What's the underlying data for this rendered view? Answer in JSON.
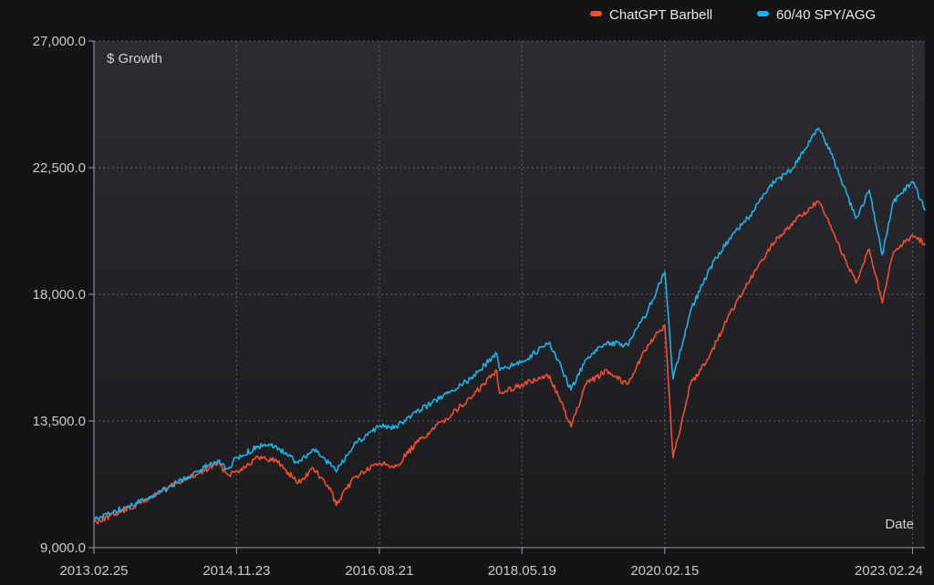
{
  "chart_data": {
    "type": "line",
    "ylabel": "$ Growth",
    "xlabel": "Date",
    "ylim": [
      9000,
      27000
    ],
    "yticks": [
      9000,
      13500,
      18000,
      22500,
      27000
    ],
    "ytick_labels": [
      "9,000.0",
      "13,500.0",
      "18,000.0",
      "22,500.0",
      "27,000.0"
    ],
    "xlim": [
      "2013-02-25",
      "2023-04-20"
    ],
    "xticks": [
      "2013-02-25",
      "2014-11-23",
      "2016-08-21",
      "2018-05-19",
      "2020-02-15",
      "2023-02-24"
    ],
    "xtick_labels": [
      "2013.02.25",
      "2014.11.23",
      "2016.08.21",
      "2018.05.19",
      "2020.02.15",
      "2023.02.24"
    ],
    "grid": true,
    "legend_position": "top-right",
    "series": [
      {
        "name": "ChatGPT Barbell",
        "color": "#f04e30",
        "x": [
          "2013-02-25",
          "2013-06-01",
          "2013-09-01",
          "2013-12-01",
          "2014-03-01",
          "2014-06-01",
          "2014-09-01",
          "2014-10-15",
          "2014-11-23",
          "2015-03-01",
          "2015-05-20",
          "2015-08-25",
          "2015-11-01",
          "2016-01-20",
          "2016-02-11",
          "2016-05-01",
          "2016-08-21",
          "2016-11-05",
          "2017-02-01",
          "2017-06-01",
          "2017-10-01",
          "2018-01-26",
          "2018-02-09",
          "2018-05-19",
          "2018-09-20",
          "2018-12-24",
          "2019-03-01",
          "2019-06-03",
          "2019-09-01",
          "2019-12-01",
          "2020-02-15",
          "2020-03-23",
          "2020-06-08",
          "2020-09-01",
          "2020-12-01",
          "2021-03-01",
          "2021-06-01",
          "2021-09-01",
          "2021-12-31",
          "2022-03-01",
          "2022-06-16",
          "2022-08-15",
          "2022-10-12",
          "2022-12-01",
          "2023-02-24",
          "2023-04-20"
        ],
        "values": [
          9900,
          10200,
          10500,
          10900,
          11300,
          11600,
          12000,
          11600,
          11700,
          12200,
          12100,
          11300,
          11800,
          11000,
          10500,
          11500,
          12000,
          11900,
          12700,
          13500,
          14300,
          15300,
          14500,
          14800,
          15100,
          13300,
          14800,
          15300,
          14800,
          16200,
          16900,
          12200,
          14800,
          15800,
          17300,
          18500,
          19700,
          20500,
          21300,
          20300,
          18400,
          19600,
          17700,
          19500,
          20100,
          19800
        ]
      },
      {
        "name": "60/40 SPY/AGG",
        "color": "#1bb2ea",
        "x": [
          "2013-02-25",
          "2013-06-01",
          "2013-09-01",
          "2013-12-01",
          "2014-03-01",
          "2014-06-01",
          "2014-09-01",
          "2014-10-15",
          "2014-11-23",
          "2015-03-01",
          "2015-05-20",
          "2015-08-25",
          "2015-11-01",
          "2016-01-20",
          "2016-02-11",
          "2016-05-01",
          "2016-08-21",
          "2016-11-05",
          "2017-02-01",
          "2017-06-01",
          "2017-10-01",
          "2018-01-26",
          "2018-02-09",
          "2018-05-19",
          "2018-09-20",
          "2018-12-24",
          "2019-03-01",
          "2019-06-03",
          "2019-09-01",
          "2019-12-01",
          "2020-02-15",
          "2020-03-23",
          "2020-06-08",
          "2020-09-01",
          "2020-12-01",
          "2021-03-01",
          "2021-06-01",
          "2021-09-01",
          "2021-12-31",
          "2022-03-01",
          "2022-06-16",
          "2022-08-15",
          "2022-10-12",
          "2022-12-01",
          "2023-02-24",
          "2023-04-20"
        ],
        "values": [
          10000,
          10300,
          10600,
          10900,
          11300,
          11700,
          12100,
          11800,
          12200,
          12600,
          12600,
          12000,
          12500,
          11900,
          11700,
          12700,
          13300,
          13300,
          13800,
          14400,
          15000,
          15900,
          15300,
          15600,
          16300,
          14600,
          15700,
          16300,
          16200,
          17400,
          18800,
          15000,
          17400,
          18900,
          20000,
          20800,
          21900,
          22400,
          23900,
          23000,
          20700,
          21700,
          19400,
          21300,
          22000,
          21000
        ]
      }
    ]
  }
}
